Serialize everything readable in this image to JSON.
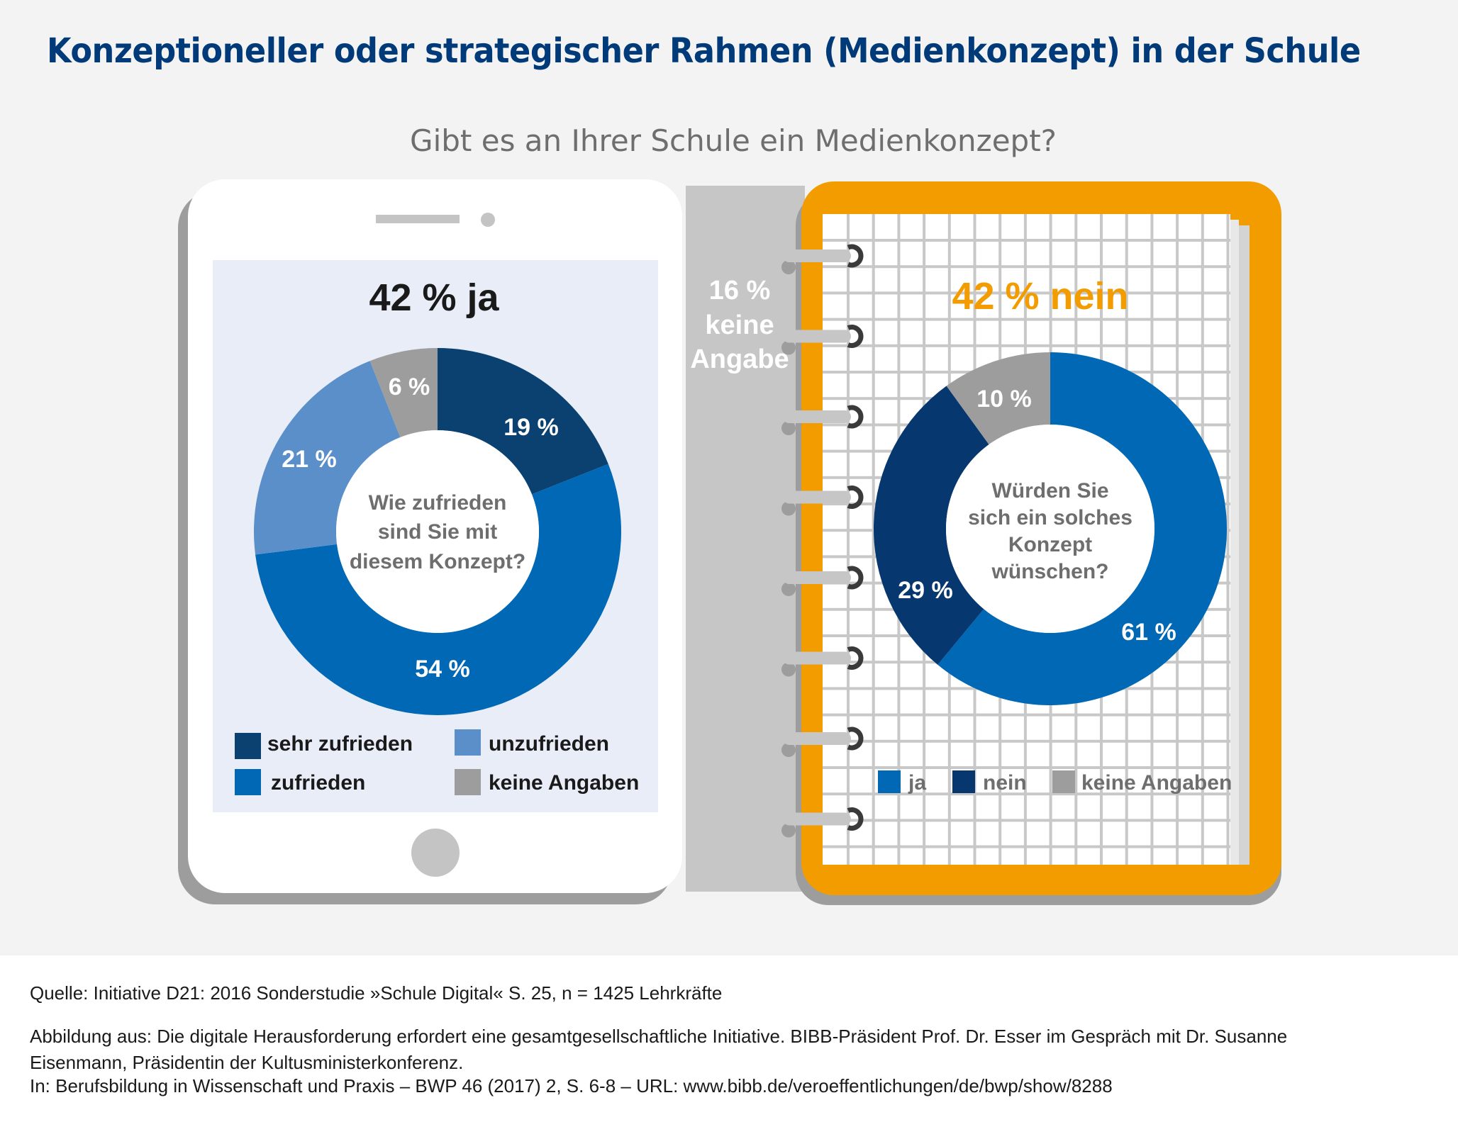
{
  "title": "Konzeptioneller oder strategischer Rahmen (Medienkonzept) in der Schule",
  "subtitle": "Gibt es an Ihrer Schule ein Medienkonzept?",
  "colors": {
    "title": "#003a78",
    "sehr_zufrieden": "#0a4170",
    "zufrieden": "#0068b4",
    "unzufrieden": "#5b8fca",
    "keine_angaben": "#9d9d9d",
    "ja": "#0068b4",
    "nein": "#06376e",
    "orange": "#f39c00"
  },
  "keine_angabe_side": {
    "line1": "16 %",
    "line2": "keine",
    "line3": "Angabe"
  },
  "chart_data": [
    {
      "type": "pie",
      "variant": "donut",
      "headline": "42 % ja",
      "center_text": [
        "Wie zufrieden",
        "sind Sie mit",
        "diesem Konzept?"
      ],
      "categories": [
        "sehr zufrieden",
        "zufrieden",
        "unzufrieden",
        "keine Angaben"
      ],
      "values": [
        19,
        54,
        21,
        6
      ],
      "labels": [
        "19 %",
        "54 %",
        "21 %",
        "6 %"
      ],
      "unit": "%",
      "legend": [
        "sehr zufrieden",
        "unzufrieden",
        "zufrieden",
        "keine Angaben"
      ],
      "legend_placement": "bottom"
    },
    {
      "type": "pie",
      "variant": "donut",
      "headline": "42 % nein",
      "center_text": [
        "Würden Sie",
        "sich ein solches",
        "Konzept",
        "wünschen?"
      ],
      "categories": [
        "ja",
        "nein",
        "keine Angaben"
      ],
      "values": [
        61,
        29,
        10
      ],
      "labels": [
        "61 %",
        "29 %",
        "10 %"
      ],
      "unit": "%",
      "legend": [
        "ja",
        "nein",
        "keine Angaben"
      ],
      "legend_placement": "bottom"
    }
  ],
  "footer": {
    "source": "Quelle: Initiative D21: 2016 Sonderstudie »Schule Digital« S. 25, n = 1425 Lehrkräfte",
    "figure_line1": "Abbildung aus: Die digitale Herausforderung erfordert eine gesamtgesellschaftliche Initiative. BIBB-Präsident Prof. Dr. Esser im Gespräch mit Dr. Susanne",
    "figure_line2": "Eisenmann, Präsidentin der Kultusministerkonferenz.",
    "figure_line3": "In: Berufsbildung in Wissenschaft und Praxis – BWP 46 (2017) 2, S. 6-8 – URL: www.bibb.de/veroeffentlichungen/de/bwp/show/8288"
  }
}
